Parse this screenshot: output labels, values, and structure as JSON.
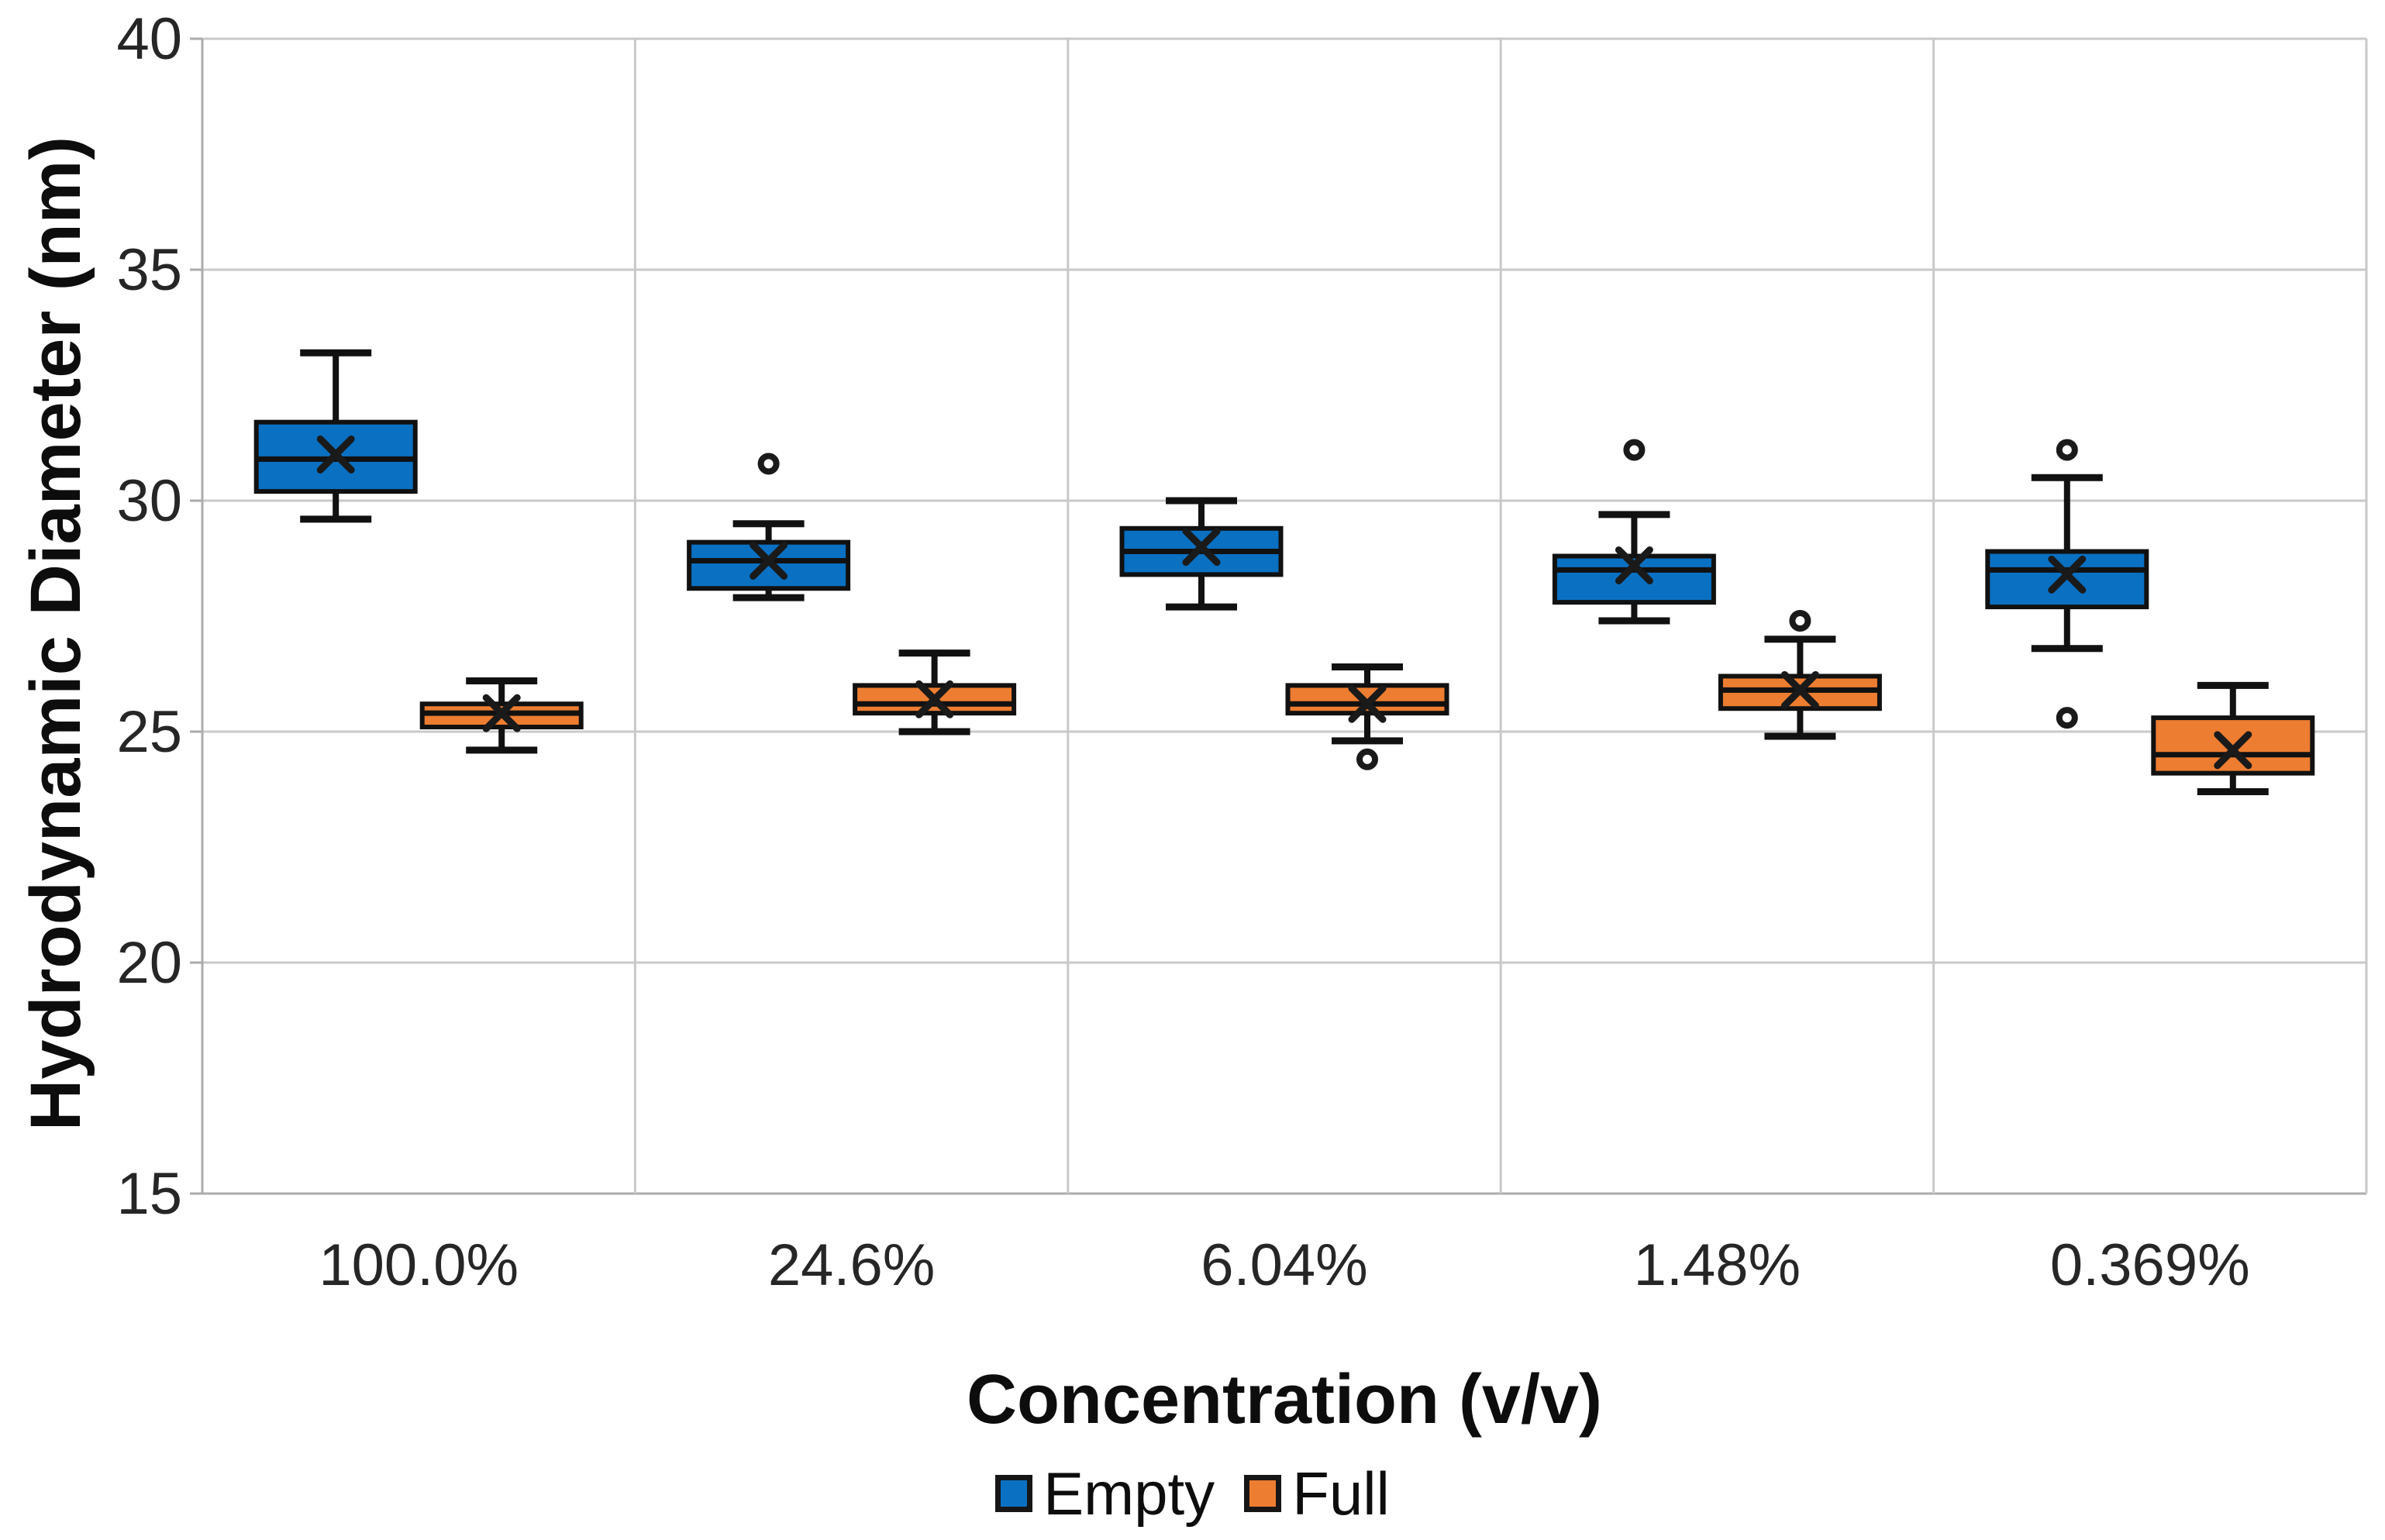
{
  "figure": {
    "background": "#FFFFFF"
  },
  "colors": {
    "empty_fill": "#0A70C2",
    "full_fill": "#ED7D31",
    "box_border": "#111111",
    "whisker": "#111111",
    "gridline": "#C9C9C9",
    "axis_line": "#ABABAB",
    "tick_label": "#262626",
    "title_text": "#0D0D0D"
  },
  "chart_data": {
    "type": "boxplot",
    "title": "",
    "xlabel": "Concentration (v/v)",
    "ylabel": "Hydrodynamic Diameter (nm)",
    "ylim": [
      15,
      40
    ],
    "yticks": [
      40,
      35,
      30,
      25,
      20,
      15
    ],
    "categories": [
      "100.0%",
      "24.6%",
      "6.04%",
      "1.48%",
      "0.369%"
    ],
    "grid": {
      "horizontal": true,
      "vertical": true
    },
    "legend_position": "bottom",
    "series": [
      {
        "name": "Empty",
        "color": "#0A70C2",
        "boxes": [
          {
            "min": 29.6,
            "q1": 30.2,
            "median": 30.9,
            "mean": 31.0,
            "q3": 31.7,
            "max": 33.2,
            "outliers": []
          },
          {
            "min": 27.9,
            "q1": 28.1,
            "median": 28.7,
            "mean": 28.7,
            "q3": 29.1,
            "max": 29.5,
            "outliers": [
              30.8
            ]
          },
          {
            "min": 27.7,
            "q1": 28.4,
            "median": 28.9,
            "mean": 29.0,
            "q3": 29.4,
            "max": 30.0,
            "outliers": []
          },
          {
            "min": 27.4,
            "q1": 27.8,
            "median": 28.5,
            "mean": 28.6,
            "q3": 28.8,
            "max": 29.7,
            "outliers": [
              31.1
            ]
          },
          {
            "min": 26.8,
            "q1": 27.7,
            "median": 28.5,
            "mean": 28.4,
            "q3": 28.9,
            "max": 30.5,
            "outliers": [
              31.1,
              25.3
            ]
          }
        ]
      },
      {
        "name": "Full",
        "color": "#ED7D31",
        "boxes": [
          {
            "min": 24.6,
            "q1": 25.1,
            "median": 25.4,
            "mean": 25.4,
            "q3": 25.6,
            "max": 26.1,
            "outliers": []
          },
          {
            "min": 25.0,
            "q1": 25.4,
            "median": 25.6,
            "mean": 25.7,
            "q3": 26.0,
            "max": 26.7,
            "outliers": []
          },
          {
            "min": 24.8,
            "q1": 25.4,
            "median": 25.6,
            "mean": 25.6,
            "q3": 26.0,
            "max": 26.4,
            "outliers": [
              24.4
            ]
          },
          {
            "min": 24.9,
            "q1": 25.5,
            "median": 25.9,
            "mean": 25.9,
            "q3": 26.2,
            "max": 27.0,
            "outliers": [
              27.4
            ]
          },
          {
            "min": 23.7,
            "q1": 24.1,
            "median": 24.5,
            "mean": 24.6,
            "q3": 25.3,
            "max": 26.0,
            "outliers": []
          }
        ]
      }
    ]
  }
}
